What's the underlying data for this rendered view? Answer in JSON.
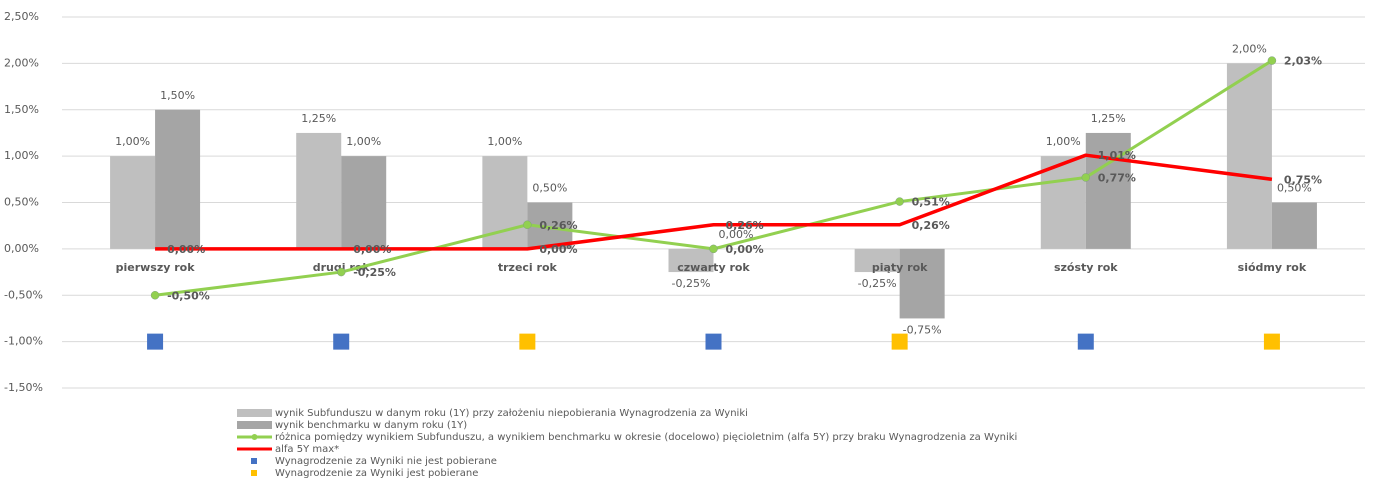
{
  "chart_data": {
    "type": "bar",
    "categories": [
      "pierwszy rok",
      "drugi rok",
      "trzeci rok",
      "czwarty rok",
      "piąty rok",
      "szósty rok",
      "siódmy rok"
    ],
    "ylim": [
      -1.5,
      2.5
    ],
    "yticks": [
      {
        "value": -1.5,
        "label": "-1,50%"
      },
      {
        "value": -1,
        "label": "-1,00%"
      },
      {
        "value": -0.5,
        "label": "-0,50%"
      },
      {
        "value": 0,
        "label": "0,00%"
      },
      {
        "value": 0.5,
        "label": "0,50%"
      },
      {
        "value": 1,
        "label": "1,00%"
      },
      {
        "value": 1.5,
        "label": "1,50%"
      },
      {
        "value": 2,
        "label": "2,00%"
      },
      {
        "value": 2.5,
        "label": "2,50%"
      }
    ],
    "grid": true,
    "series": [
      {
        "name": "wynik Subfunduszu w danym roku (1Y) przy założeniu niepobierania Wynagrodzenia za Wyniki",
        "type": "bar",
        "color": "#bfbfbf",
        "values": [
          1.0,
          1.25,
          1.0,
          -0.25,
          -0.25,
          1.0,
          2.0
        ],
        "value_labels": [
          "1,00%",
          "1,25%",
          "1,00%",
          "-0,25%",
          "-0,25%",
          "1,00%",
          "2,00%"
        ]
      },
      {
        "name": "wynik benchmarku w danym roku (1Y)",
        "type": "bar",
        "color": "#a5a5a5",
        "values": [
          1.5,
          1.0,
          0.5,
          0.0,
          -0.75,
          1.25,
          0.5
        ],
        "value_labels": [
          "1,50%",
          "1,00%",
          "0,50%",
          "0,00%",
          "-0,75%",
          "1,25%",
          "0,50%"
        ]
      },
      {
        "name": "różnica pomiędzy wynikiem Subfunduszu, a wynikiem benchmarku w okresie (docelowo) pięcioletnim (alfa 5Y) przy braku Wynagrodzenia za Wyniki",
        "type": "line",
        "color": "#92d050",
        "markers": true,
        "values": [
          -0.5,
          -0.25,
          0.26,
          0.0,
          0.51,
          0.77,
          2.03
        ],
        "value_labels": [
          "-0,50%",
          "-0,25%",
          "0,26%",
          "0,00%",
          "0,51%",
          "0,77%",
          "2,03%"
        ]
      },
      {
        "name": "alfa 5Y max*",
        "type": "line",
        "color": "#ff0000",
        "markers": false,
        "values": [
          0.0,
          0.0,
          0.0,
          0.26,
          0.26,
          1.01,
          0.75
        ],
        "value_labels": [
          "0,00%",
          "0,00%",
          "0,00%",
          "0,26%",
          "0,26%",
          "1,01%",
          "0,75%"
        ]
      },
      {
        "name": "Wynagrodzenie za Wyniki nie jest pobierane",
        "type": "scatter",
        "color": "#4472c4",
        "values": [
          -1,
          -1,
          null,
          -1,
          null,
          -1,
          null
        ]
      },
      {
        "name": "Wynagrodzenie za Wyniki jest pobierane",
        "type": "scatter",
        "color": "#ffc000",
        "values": [
          null,
          null,
          -1,
          null,
          -1,
          null,
          -1
        ]
      }
    ]
  }
}
